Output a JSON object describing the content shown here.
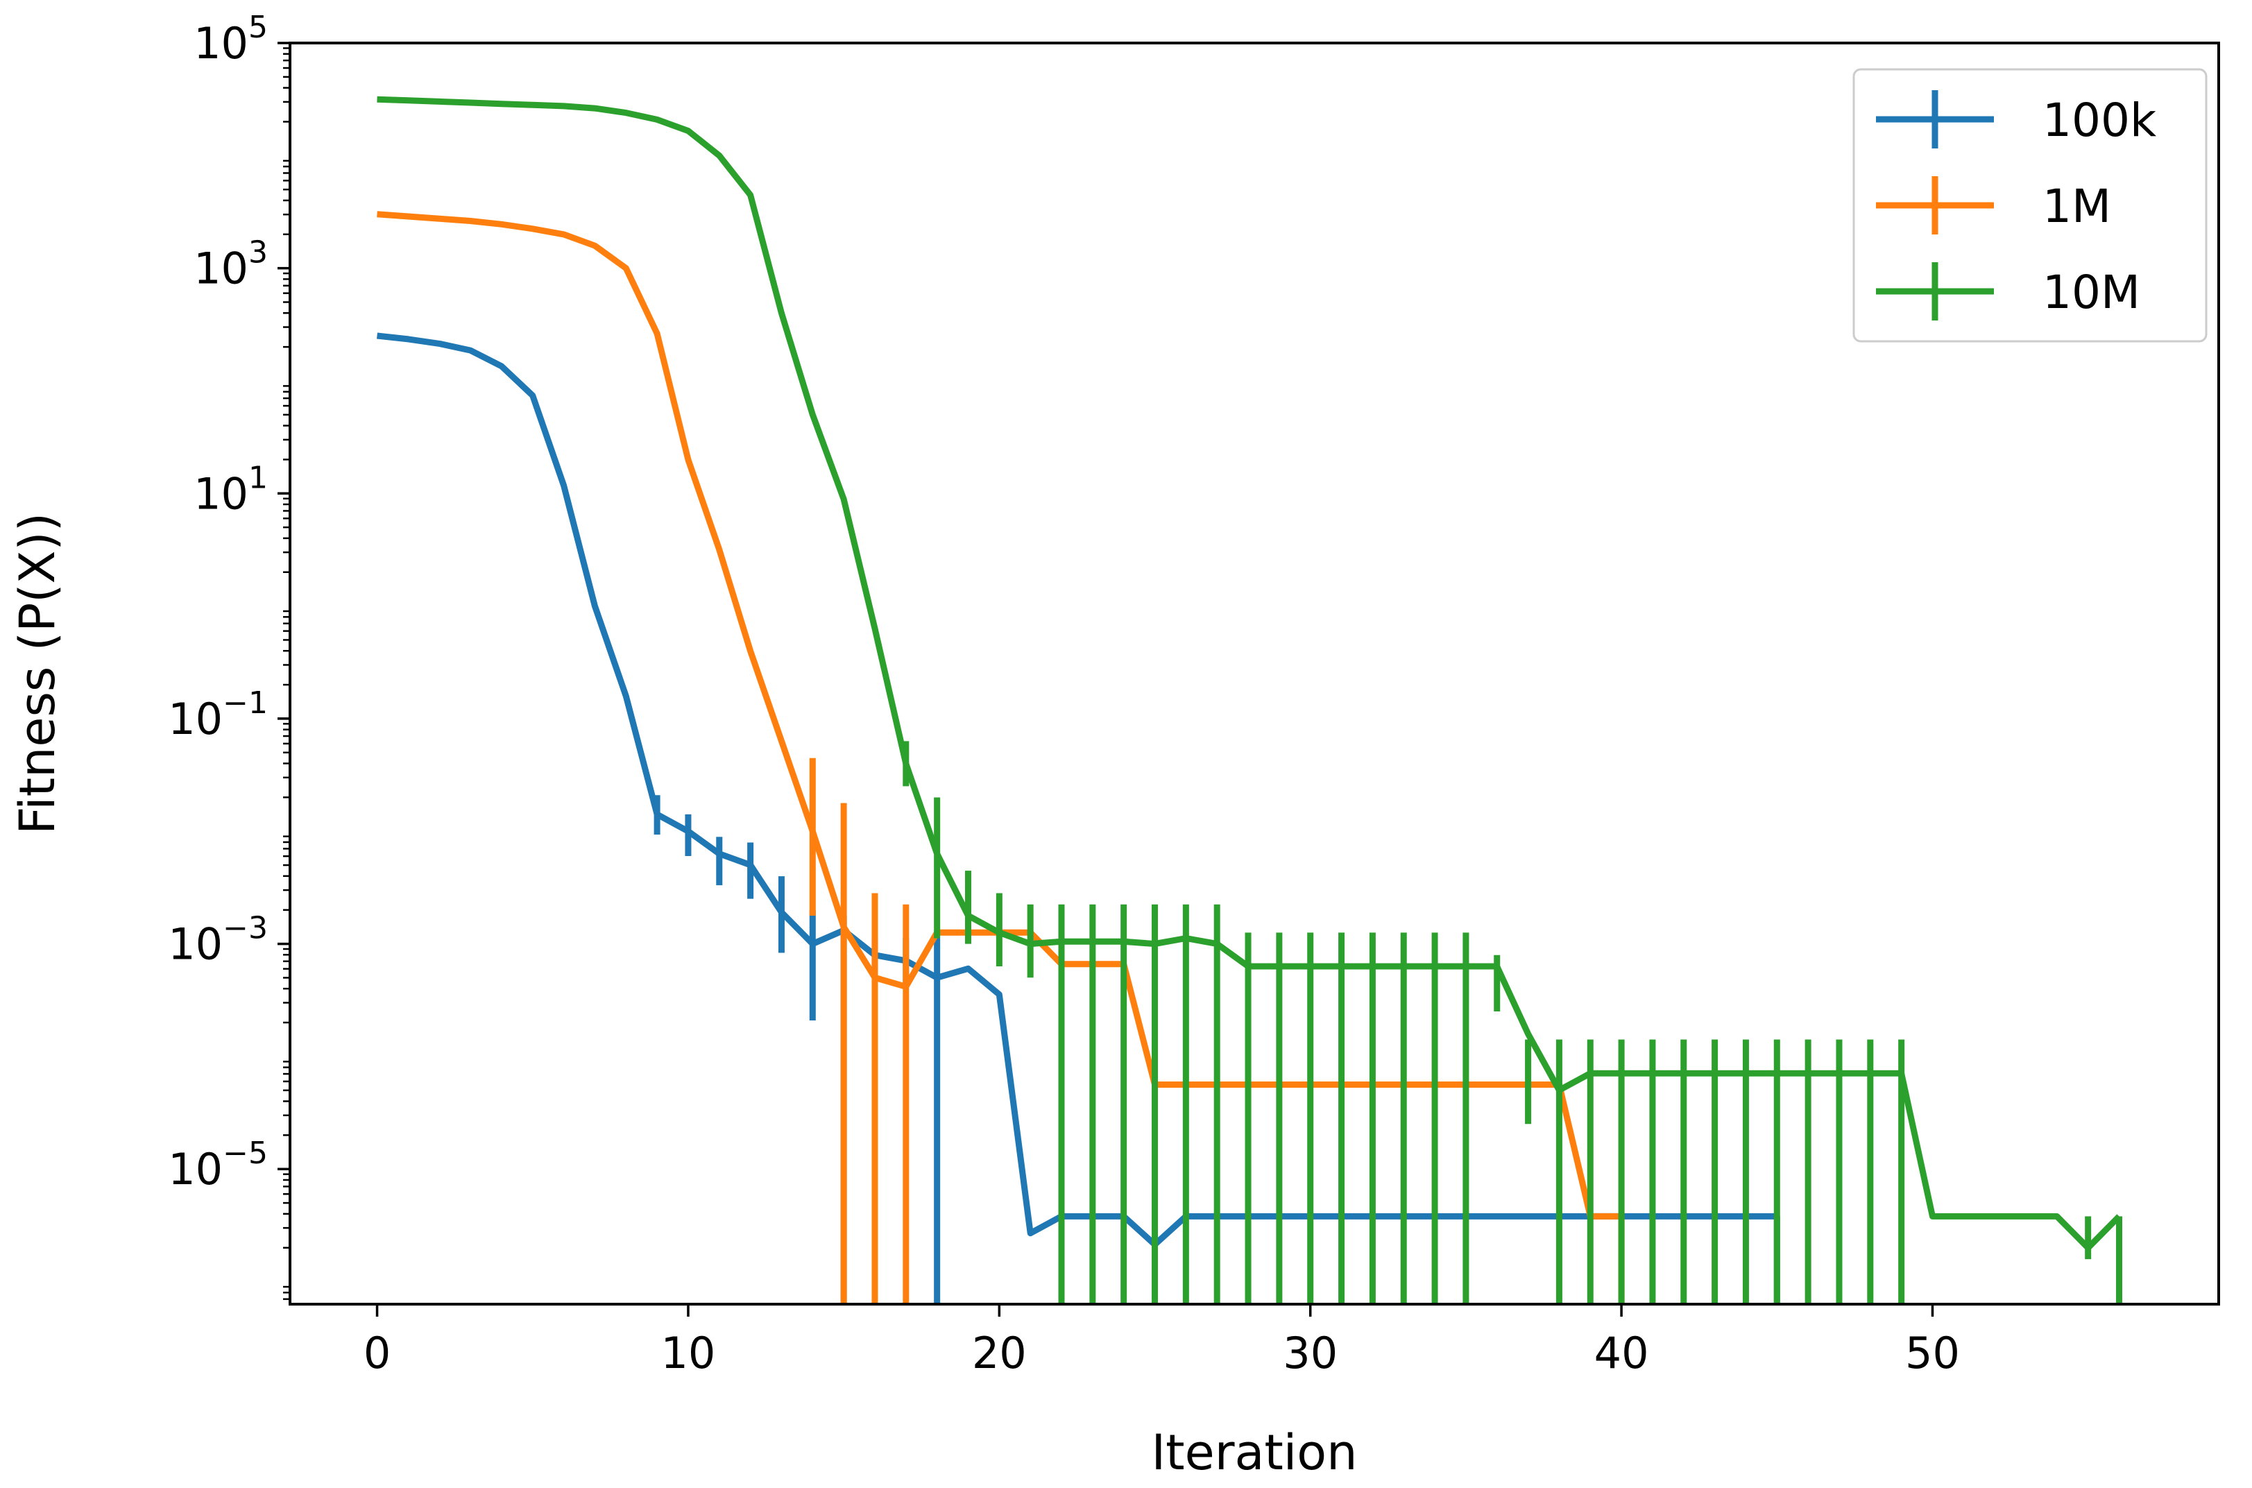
{
  "chart_data": {
    "type": "line",
    "title": "",
    "xlabel": "Iteration",
    "ylabel": "Fitness (P(X))",
    "yscale": "log",
    "xlim": [
      -2.8,
      59.2
    ],
    "ylim_log10": [
      -6.2,
      5.0
    ],
    "grid": false,
    "legend_position": "top-right",
    "x_ticks": [
      {
        "value": 0,
        "label": "0"
      },
      {
        "value": 10,
        "label": "10"
      },
      {
        "value": 20,
        "label": "20"
      },
      {
        "value": 30,
        "label": "30"
      },
      {
        "value": 40,
        "label": "40"
      },
      {
        "value": 50,
        "label": "50"
      }
    ],
    "y_ticks": [
      {
        "exp": 5,
        "base": "10",
        "sup": "5"
      },
      {
        "exp": 3,
        "base": "10",
        "sup": "3"
      },
      {
        "exp": 1,
        "base": "10",
        "sup": "1"
      },
      {
        "exp": -1,
        "base": "10",
        "sup": "−1"
      },
      {
        "exp": -3,
        "base": "10",
        "sup": "−3"
      },
      {
        "exp": -5,
        "base": "10",
        "sup": "−5"
      }
    ],
    "series": [
      {
        "name": "100k",
        "color": "#1f77b4",
        "x": [
          0,
          1,
          2,
          3,
          4,
          5,
          6,
          7,
          8,
          9,
          10,
          11,
          12,
          13,
          14,
          15,
          16,
          17,
          18,
          19,
          20,
          21,
          22,
          23,
          24,
          25,
          26,
          27,
          28,
          29,
          30,
          31,
          32,
          33,
          34,
          35,
          36,
          37,
          38,
          39,
          40,
          41,
          42,
          43,
          44,
          45
        ],
        "log10_y": [
          2.4,
          2.37,
          2.33,
          2.27,
          2.13,
          1.87,
          1.07,
          0.0,
          -0.8,
          -1.85,
          -2.0,
          -2.2,
          -2.3,
          -2.72,
          -3.0,
          -2.88,
          -3.1,
          -3.15,
          -3.3,
          -3.22,
          -3.45,
          -5.57,
          -5.42,
          -5.42,
          -5.42,
          -5.67,
          -5.42,
          -5.42,
          -5.42,
          -5.42,
          -5.42,
          -5.42,
          -5.42,
          -5.42,
          -5.42,
          -5.42,
          -5.42,
          -5.42,
          -5.42,
          -5.42,
          -5.42,
          -5.42,
          -5.42,
          -5.42,
          -5.42,
          -5.42
        ],
        "error_bars": [
          {
            "x": 9,
            "low": -2.03,
            "high": -1.68
          },
          {
            "x": 10,
            "low": -2.22,
            "high": -1.85
          },
          {
            "x": 11,
            "low": -2.48,
            "high": -2.05
          },
          {
            "x": 12,
            "low": -2.6,
            "high": -2.1
          },
          {
            "x": 13,
            "low": -3.08,
            "high": -2.4
          },
          {
            "x": 14,
            "low": -3.68,
            "high": -2.7
          },
          {
            "x": 15,
            "low": -6.2,
            "high": -2.75
          },
          {
            "x": 16,
            "low": -3.25,
            "high": -2.95
          },
          {
            "x": 17,
            "low": -3.35,
            "high": -2.95
          },
          {
            "x": 18,
            "low": -6.2,
            "high": -2.95
          },
          {
            "x": 45,
            "low": -6.2,
            "high": -5.42
          }
        ]
      },
      {
        "name": "1M",
        "color": "#ff7f0e",
        "x": [
          0,
          1,
          2,
          3,
          4,
          5,
          6,
          7,
          8,
          9,
          10,
          11,
          12,
          13,
          14,
          15,
          16,
          17,
          18,
          19,
          20,
          21,
          22,
          23,
          24,
          25,
          26,
          27,
          28,
          29,
          30,
          31,
          32,
          33,
          34,
          35,
          36,
          37,
          38,
          39,
          40
        ],
        "log10_y": [
          3.48,
          3.46,
          3.44,
          3.42,
          3.39,
          3.35,
          3.3,
          3.2,
          3.0,
          2.42,
          1.3,
          0.5,
          -0.4,
          -1.2,
          -2.0,
          -2.85,
          -3.3,
          -3.38,
          -2.9,
          -2.9,
          -2.9,
          -2.9,
          -3.18,
          -3.18,
          -3.18,
          -4.25,
          -4.25,
          -4.25,
          -4.25,
          -4.25,
          -4.25,
          -4.25,
          -4.25,
          -4.25,
          -4.25,
          -4.25,
          -4.25,
          -4.25,
          -4.25,
          -5.42,
          -5.42
        ],
        "error_bars": [
          {
            "x": 14,
            "low": -2.75,
            "high": -1.35
          },
          {
            "x": 15,
            "low": -6.2,
            "high": -1.75
          },
          {
            "x": 16,
            "low": -6.2,
            "high": -2.55
          },
          {
            "x": 17,
            "low": -6.2,
            "high": -2.65
          },
          {
            "x": 40,
            "low": -6.2,
            "high": -5.42
          }
        ]
      },
      {
        "name": "10M",
        "color": "#2ca02c",
        "x": [
          0,
          1,
          2,
          3,
          4,
          5,
          6,
          7,
          8,
          9,
          10,
          11,
          12,
          13,
          14,
          15,
          16,
          17,
          18,
          19,
          20,
          21,
          22,
          23,
          24,
          25,
          26,
          27,
          28,
          29,
          30,
          31,
          32,
          33,
          34,
          35,
          36,
          37,
          38,
          39,
          40,
          41,
          42,
          43,
          44,
          45,
          46,
          47,
          48,
          49,
          50,
          51,
          52,
          53,
          54,
          55,
          56
        ],
        "log10_y": [
          4.5,
          4.49,
          4.48,
          4.47,
          4.46,
          4.45,
          4.44,
          4.42,
          4.38,
          4.32,
          4.22,
          4.0,
          3.65,
          2.6,
          1.7,
          0.95,
          -0.2,
          -1.4,
          -2.2,
          -2.75,
          -2.9,
          -3.0,
          -2.98,
          -2.98,
          -2.98,
          -3.0,
          -2.95,
          -3.0,
          -3.2,
          -3.2,
          -3.2,
          -3.2,
          -3.2,
          -3.2,
          -3.2,
          -3.2,
          -3.2,
          -3.8,
          -4.3,
          -4.15,
          -4.15,
          -4.15,
          -4.15,
          -4.15,
          -4.15,
          -4.15,
          -4.15,
          -4.15,
          -4.15,
          -4.15,
          -5.42,
          -5.42,
          -5.42,
          -5.42,
          -5.42,
          -5.7,
          -5.42
        ],
        "error_bars": [
          {
            "x": 17,
            "low": -1.6,
            "high": -1.2
          },
          {
            "x": 18,
            "low": -2.95,
            "high": -1.7
          },
          {
            "x": 19,
            "low": -3.0,
            "high": -2.35
          },
          {
            "x": 20,
            "low": -3.2,
            "high": -2.55
          },
          {
            "x": 21,
            "low": -3.3,
            "high": -2.65
          },
          {
            "x": 22,
            "low": -6.2,
            "high": -2.65
          },
          {
            "x": 23,
            "low": -6.2,
            "high": -2.65
          },
          {
            "x": 24,
            "low": -6.2,
            "high": -2.65
          },
          {
            "x": 25,
            "low": -6.2,
            "high": -2.65
          },
          {
            "x": 26,
            "low": -6.2,
            "high": -2.65
          },
          {
            "x": 27,
            "low": -6.2,
            "high": -2.65
          },
          {
            "x": 28,
            "low": -6.2,
            "high": -2.9
          },
          {
            "x": 29,
            "low": -6.2,
            "high": -2.9
          },
          {
            "x": 30,
            "low": -6.2,
            "high": -2.9
          },
          {
            "x": 31,
            "low": -6.2,
            "high": -2.9
          },
          {
            "x": 32,
            "low": -6.2,
            "high": -2.9
          },
          {
            "x": 33,
            "low": -6.2,
            "high": -2.9
          },
          {
            "x": 34,
            "low": -6.2,
            "high": -2.9
          },
          {
            "x": 35,
            "low": -6.2,
            "high": -2.9
          },
          {
            "x": 36,
            "low": -3.6,
            "high": -3.1
          },
          {
            "x": 37,
            "low": -4.6,
            "high": -3.85
          },
          {
            "x": 38,
            "low": -6.2,
            "high": -3.85
          },
          {
            "x": 39,
            "low": -6.2,
            "high": -3.85
          },
          {
            "x": 40,
            "low": -6.2,
            "high": -3.85
          },
          {
            "x": 41,
            "low": -6.2,
            "high": -3.85
          },
          {
            "x": 42,
            "low": -6.2,
            "high": -3.85
          },
          {
            "x": 43,
            "low": -6.2,
            "high": -3.85
          },
          {
            "x": 44,
            "low": -6.2,
            "high": -3.85
          },
          {
            "x": 45,
            "low": -6.2,
            "high": -3.85
          },
          {
            "x": 46,
            "low": -6.2,
            "high": -3.85
          },
          {
            "x": 47,
            "low": -6.2,
            "high": -3.85
          },
          {
            "x": 48,
            "low": -6.2,
            "high": -3.85
          },
          {
            "x": 49,
            "low": -6.2,
            "high": -3.85
          },
          {
            "x": 55,
            "low": -5.8,
            "high": -5.42
          },
          {
            "x": 56,
            "low": -6.2,
            "high": -5.42
          }
        ]
      }
    ]
  }
}
